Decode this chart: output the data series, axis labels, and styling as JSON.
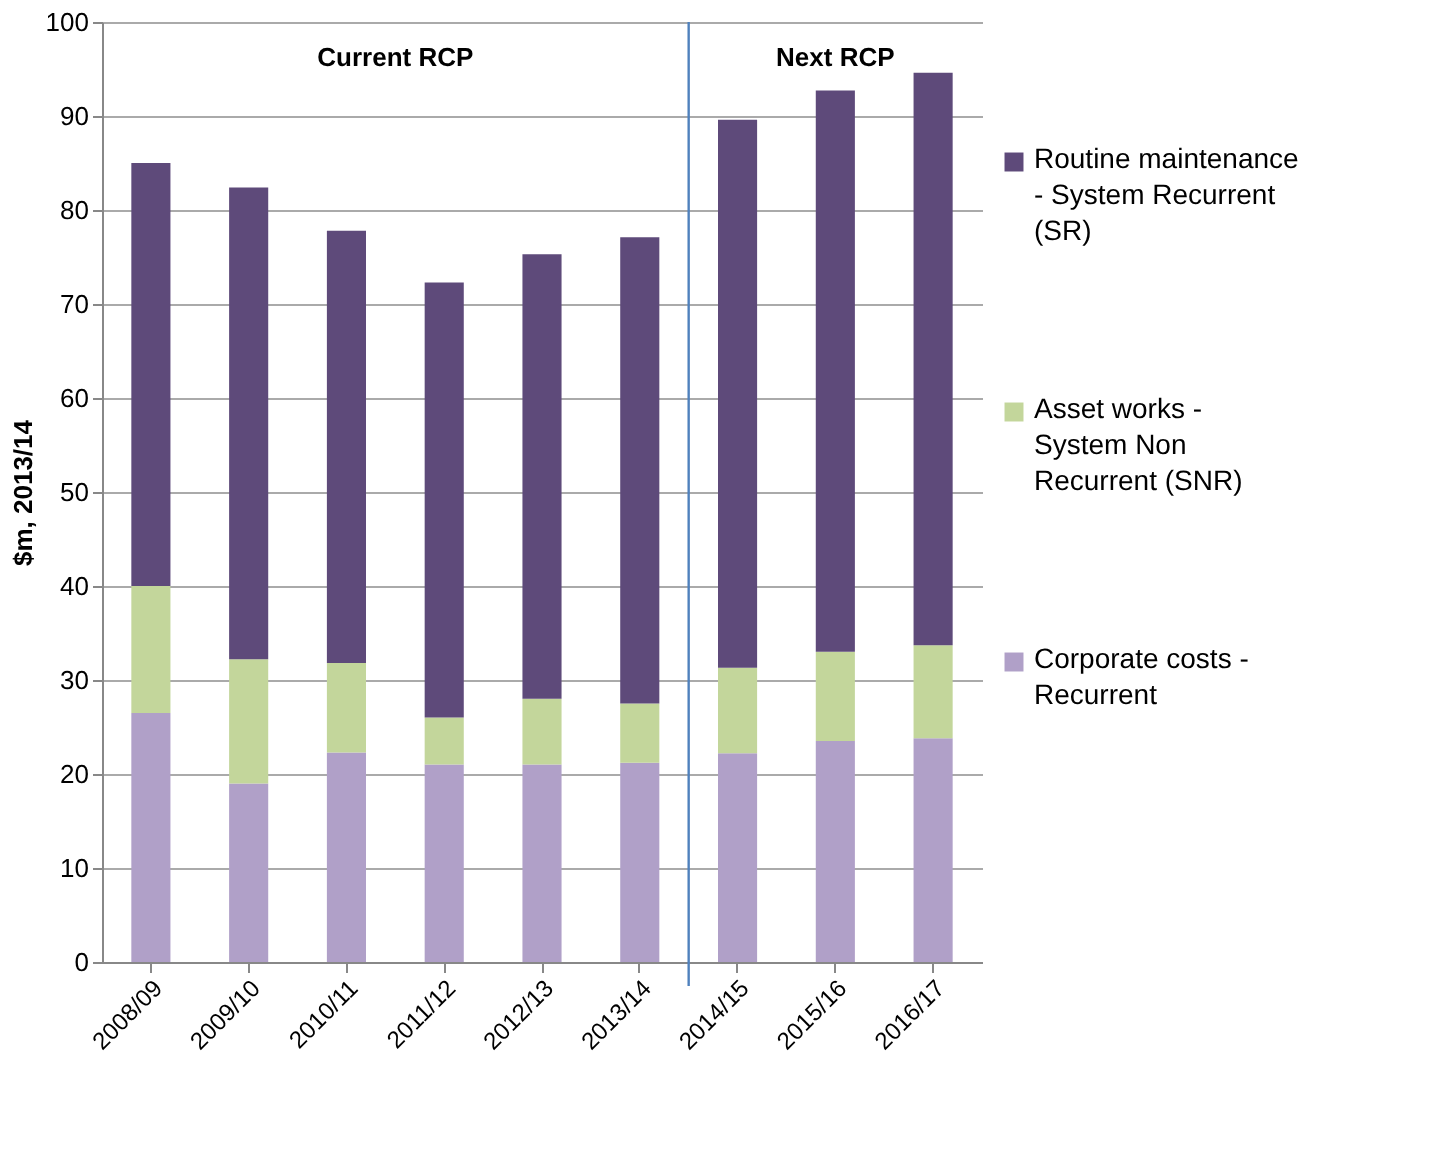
{
  "chart_data": {
    "type": "bar",
    "stacked": true,
    "ylabel": "$m, 2013/14",
    "categories": [
      "2008/09",
      "2009/10",
      "2010/11",
      "2011/12",
      "2012/13",
      "2013/14",
      "2014/15",
      "2015/16",
      "2016/17"
    ],
    "series": [
      {
        "name": "Corporate costs - Recurrent",
        "color": "#b0a0c8",
        "values": [
          26.5,
          19,
          22.3,
          21,
          21,
          21.2,
          22.2,
          23.5,
          23.8
        ]
      },
      {
        "name": "Asset works - System Non Recurrent (SNR)",
        "color": "#c3d69b",
        "values": [
          13.5,
          13.2,
          9.5,
          5,
          7,
          6.3,
          9.1,
          9.5,
          9.9
        ]
      },
      {
        "name": "Routine maintenance - System Recurrent (SR)",
        "color": "#5e4a7a",
        "values": [
          45,
          50.2,
          46,
          46.3,
          47.3,
          49.6,
          58.3,
          59.7,
          60.9
        ]
      }
    ],
    "ylim": [
      0,
      100
    ],
    "yticks": [
      0,
      10,
      20,
      30,
      40,
      50,
      60,
      70,
      80,
      90,
      100
    ],
    "grid": "y",
    "legend": "right",
    "ref_lines": [
      {
        "axis": "x",
        "value": "2014/15",
        "color": "#4f81bd"
      }
    ],
    "annotations": [
      "Current RCP",
      "Next RCP"
    ]
  }
}
